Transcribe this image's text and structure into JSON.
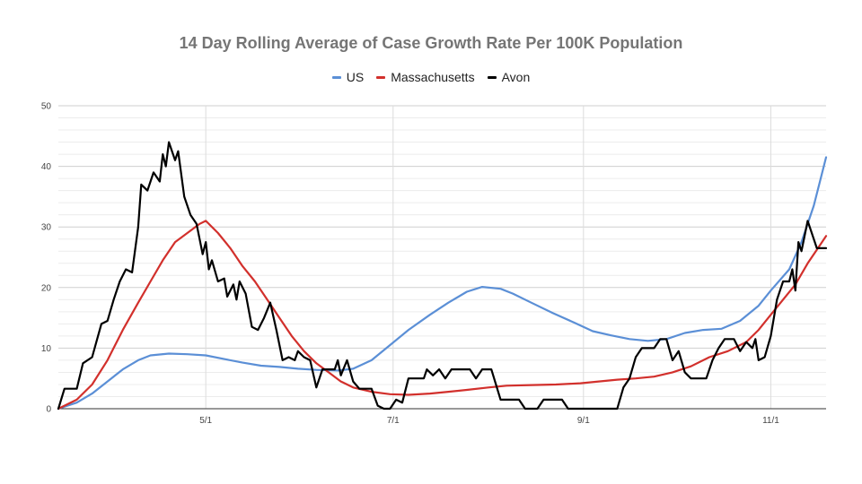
{
  "chart_data": {
    "type": "line",
    "title": "14 Day Rolling Average of Case Growth Rate Per 100K Population",
    "xlabel": "",
    "ylabel": "",
    "ylim": [
      0,
      50
    ],
    "yticks": [
      "0",
      "10",
      "20",
      "30",
      "40",
      "50"
    ],
    "xticks": [
      {
        "label": "5/1",
        "day": 122
      },
      {
        "label": "7/1",
        "day": 183
      },
      {
        "label": "9/1",
        "day": 245
      },
      {
        "label": "11/1",
        "day": 306
      }
    ],
    "x_units": "day of year 2020",
    "xlim": [
      74,
      324
    ],
    "grid": true,
    "legend_position": "top",
    "series": [
      {
        "name": "US",
        "color": "#5b8fd6",
        "points": [
          [
            74,
            0
          ],
          [
            80,
            1
          ],
          [
            85,
            2.5
          ],
          [
            90,
            4.5
          ],
          [
            95,
            6.5
          ],
          [
            100,
            8
          ],
          [
            104,
            8.8
          ],
          [
            110,
            9.1
          ],
          [
            116,
            9
          ],
          [
            122,
            8.8
          ],
          [
            128,
            8.2
          ],
          [
            134,
            7.6
          ],
          [
            140,
            7.1
          ],
          [
            146,
            6.9
          ],
          [
            152,
            6.6
          ],
          [
            158,
            6.4
          ],
          [
            165,
            6.3
          ],
          [
            170,
            6.6
          ],
          [
            176,
            8
          ],
          [
            182,
            10.5
          ],
          [
            188,
            13
          ],
          [
            195,
            15.5
          ],
          [
            201,
            17.5
          ],
          [
            207,
            19.3
          ],
          [
            212,
            20.1
          ],
          [
            218,
            19.8
          ],
          [
            222,
            19
          ],
          [
            228,
            17.5
          ],
          [
            235,
            15.8
          ],
          [
            242,
            14.2
          ],
          [
            248,
            12.8
          ],
          [
            254,
            12.1
          ],
          [
            260,
            11.5
          ],
          [
            266,
            11.2
          ],
          [
            272,
            11.5
          ],
          [
            278,
            12.5
          ],
          [
            284,
            13
          ],
          [
            290,
            13.2
          ],
          [
            296,
            14.5
          ],
          [
            302,
            17
          ],
          [
            306,
            19.5
          ],
          [
            312,
            23
          ],
          [
            316,
            27.5
          ],
          [
            320,
            33.5
          ],
          [
            324,
            41.5
          ]
        ]
      },
      {
        "name": "Massachusetts",
        "color": "#d2302c",
        "points": [
          [
            74,
            0
          ],
          [
            80,
            1.5
          ],
          [
            85,
            4
          ],
          [
            90,
            8
          ],
          [
            95,
            13
          ],
          [
            100,
            17.5
          ],
          [
            104,
            21
          ],
          [
            108,
            24.5
          ],
          [
            112,
            27.5
          ],
          [
            116,
            29
          ],
          [
            120,
            30.5
          ],
          [
            122,
            31
          ],
          [
            126,
            29
          ],
          [
            130,
            26.5
          ],
          [
            134,
            23.5
          ],
          [
            138,
            21
          ],
          [
            142,
            18
          ],
          [
            146,
            15
          ],
          [
            150,
            12
          ],
          [
            154,
            9.5
          ],
          [
            158,
            7.5
          ],
          [
            162,
            6
          ],
          [
            166,
            4.5
          ],
          [
            170,
            3.5
          ],
          [
            176,
            2.8
          ],
          [
            182,
            2.4
          ],
          [
            188,
            2.3
          ],
          [
            195,
            2.5
          ],
          [
            201,
            2.8
          ],
          [
            207,
            3.1
          ],
          [
            214,
            3.5
          ],
          [
            220,
            3.8
          ],
          [
            228,
            3.9
          ],
          [
            236,
            4
          ],
          [
            244,
            4.2
          ],
          [
            250,
            4.5
          ],
          [
            256,
            4.8
          ],
          [
            262,
            5
          ],
          [
            268,
            5.3
          ],
          [
            274,
            6
          ],
          [
            280,
            7
          ],
          [
            286,
            8.5
          ],
          [
            292,
            9.5
          ],
          [
            298,
            11
          ],
          [
            302,
            13
          ],
          [
            306,
            15.5
          ],
          [
            310,
            18
          ],
          [
            314,
            20.5
          ],
          [
            318,
            24
          ],
          [
            322,
            27
          ],
          [
            324,
            28.5
          ]
        ]
      },
      {
        "name": "Avon",
        "color": "#000000",
        "points": [
          [
            74,
            0
          ],
          [
            76,
            3.3
          ],
          [
            80,
            3.3
          ],
          [
            82,
            7.5
          ],
          [
            85,
            8.5
          ],
          [
            88,
            14
          ],
          [
            90,
            14.5
          ],
          [
            92,
            18
          ],
          [
            94,
            21
          ],
          [
            96,
            23
          ],
          [
            98,
            22.5
          ],
          [
            100,
            30
          ],
          [
            101,
            37
          ],
          [
            103,
            36
          ],
          [
            105,
            39
          ],
          [
            107,
            37.5
          ],
          [
            108,
            42
          ],
          [
            109,
            40
          ],
          [
            110,
            44
          ],
          [
            112,
            41
          ],
          [
            113,
            42.5
          ],
          [
            115,
            35
          ],
          [
            117,
            32
          ],
          [
            119,
            30.5
          ],
          [
            120,
            28
          ],
          [
            121,
            25.5
          ],
          [
            122,
            27.5
          ],
          [
            123,
            23
          ],
          [
            124,
            24.5
          ],
          [
            126,
            21
          ],
          [
            128,
            21.5
          ],
          [
            129,
            18.5
          ],
          [
            131,
            20.5
          ],
          [
            132,
            18
          ],
          [
            133,
            21
          ],
          [
            135,
            19
          ],
          [
            137,
            13.5
          ],
          [
            139,
            13
          ],
          [
            141,
            15
          ],
          [
            143,
            17.5
          ],
          [
            145,
            13
          ],
          [
            147,
            8
          ],
          [
            149,
            8.5
          ],
          [
            151,
            8
          ],
          [
            152,
            9.5
          ],
          [
            154,
            8.5
          ],
          [
            156,
            8
          ],
          [
            158,
            3.5
          ],
          [
            160,
            6.5
          ],
          [
            164,
            6.5
          ],
          [
            165,
            8
          ],
          [
            166,
            5.5
          ],
          [
            168,
            8
          ],
          [
            170,
            4.5
          ],
          [
            172,
            3.3
          ],
          [
            176,
            3.3
          ],
          [
            178,
            0.5
          ],
          [
            180,
            0
          ],
          [
            182,
            0
          ],
          [
            184,
            1.5
          ],
          [
            186,
            1
          ],
          [
            188,
            5
          ],
          [
            193,
            5
          ],
          [
            194,
            6.5
          ],
          [
            196,
            5.5
          ],
          [
            198,
            6.5
          ],
          [
            200,
            5
          ],
          [
            202,
            6.5
          ],
          [
            208,
            6.5
          ],
          [
            210,
            5
          ],
          [
            212,
            6.5
          ],
          [
            215,
            6.5
          ],
          [
            218,
            1.5
          ],
          [
            224,
            1.5
          ],
          [
            226,
            0
          ],
          [
            230,
            0
          ],
          [
            232,
            1.5
          ],
          [
            238,
            1.5
          ],
          [
            240,
            0
          ],
          [
            256,
            0
          ],
          [
            258,
            3.5
          ],
          [
            260,
            5
          ],
          [
            262,
            8.5
          ],
          [
            264,
            10
          ],
          [
            268,
            10
          ],
          [
            270,
            11.5
          ],
          [
            272,
            11.5
          ],
          [
            274,
            8
          ],
          [
            276,
            9.5
          ],
          [
            278,
            6
          ],
          [
            280,
            5
          ],
          [
            285,
            5
          ],
          [
            287,
            8
          ],
          [
            289,
            10
          ],
          [
            291,
            11.5
          ],
          [
            294,
            11.5
          ],
          [
            296,
            9.5
          ],
          [
            298,
            11
          ],
          [
            300,
            10
          ],
          [
            301,
            11.5
          ],
          [
            302,
            8
          ],
          [
            304,
            8.5
          ],
          [
            306,
            12
          ],
          [
            308,
            18
          ],
          [
            310,
            21
          ],
          [
            312,
            21
          ],
          [
            313,
            23
          ],
          [
            314,
            19.5
          ],
          [
            315,
            27.5
          ],
          [
            316,
            26
          ],
          [
            318,
            31
          ],
          [
            320,
            28
          ],
          [
            321,
            26.5
          ],
          [
            324,
            26.5
          ]
        ]
      }
    ]
  }
}
